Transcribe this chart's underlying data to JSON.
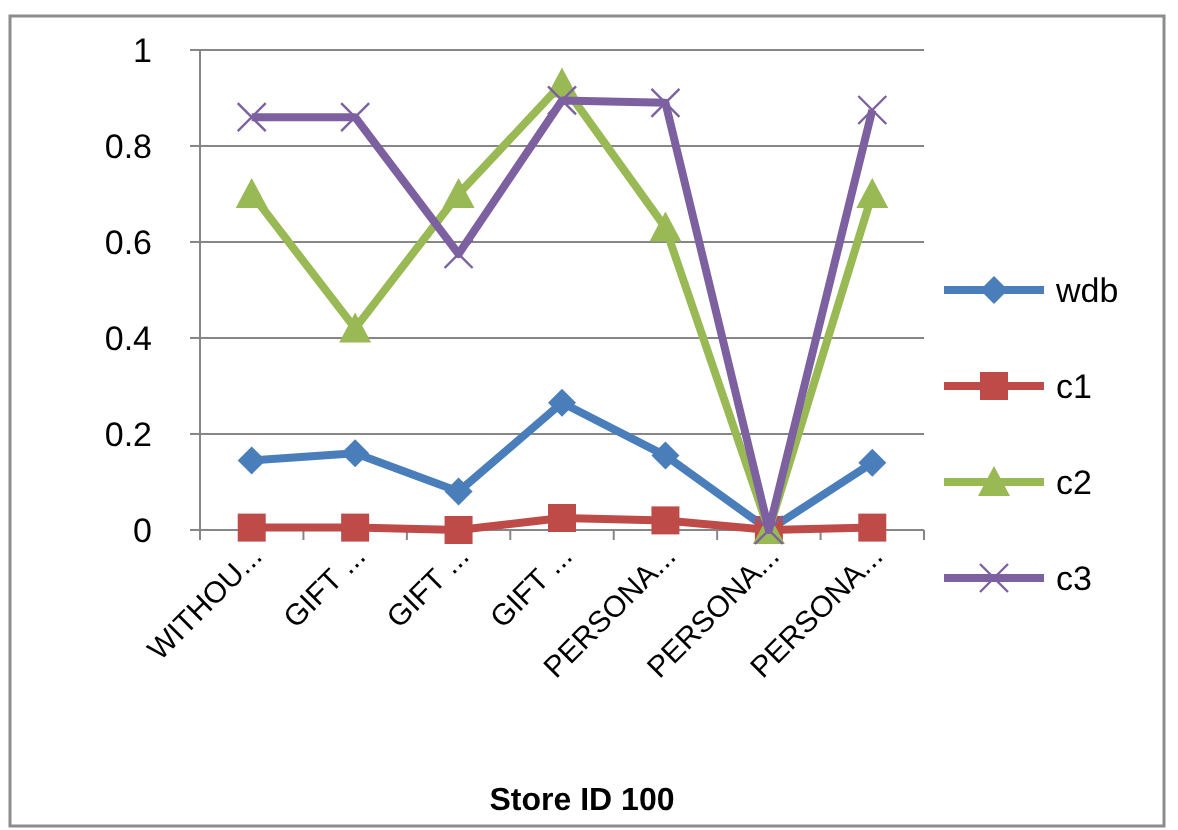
{
  "chart_data": {
    "type": "line",
    "xlabel": "Store ID 100",
    "categories": [
      "WITHOU...",
      "GIFT ...",
      "GIFT ...",
      "GIFT ...",
      "PERSONA...",
      "PERSONA...",
      "PERSONA..."
    ],
    "series": [
      {
        "name": "wdb",
        "color": "#4a7ebb",
        "marker": "diamond",
        "values": [
          0.145,
          0.16,
          0.08,
          0.265,
          0.155,
          0,
          0.14
        ]
      },
      {
        "name": "c1",
        "color": "#be4b48",
        "marker": "square",
        "values": [
          0.005,
          0.005,
          0,
          0.025,
          0.02,
          0,
          0.005
        ]
      },
      {
        "name": "c2",
        "color": "#98b954",
        "marker": "triangle",
        "values": [
          0.7,
          0.42,
          0.7,
          0.93,
          0.63,
          0,
          0.7
        ]
      },
      {
        "name": "c3",
        "color": "#7d60a0",
        "marker": "cross",
        "values": [
          0.86,
          0.86,
          0.575,
          0.895,
          0.89,
          0,
          0.875
        ]
      }
    ],
    "ylim": [
      0,
      1
    ],
    "yticks": [
      0,
      0.2,
      0.4,
      0.6,
      0.8,
      1
    ],
    "grid": "y",
    "legend": "right",
    "line_style": "solid"
  }
}
